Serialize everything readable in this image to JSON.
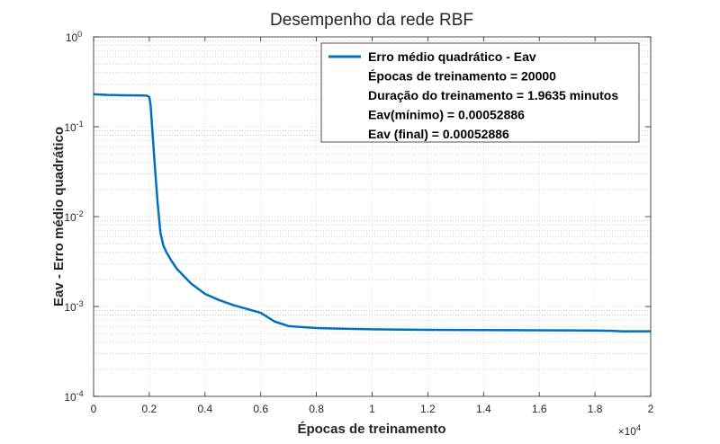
{
  "chart_data": {
    "type": "line",
    "title": "Desempenho da rede RBF",
    "xlabel": "Épocas de treinamento",
    "ylabel": "Eav - Erro médio quadrático",
    "x_tick_labels": [
      "0",
      "0.2",
      "0.4",
      "0.6",
      "0.8",
      "1",
      "1.2",
      "1.4",
      "1.6",
      "1.8",
      "2"
    ],
    "x_exponent_label": "×10",
    "x_exponent_power": "4",
    "xlim": [
      0,
      20000
    ],
    "y_scale": "log",
    "ylim": [
      0.0001,
      1
    ],
    "y_ticks": [
      {
        "base": "10",
        "power": "0",
        "value": 1
      },
      {
        "base": "10",
        "power": "-1",
        "value": 0.1
      },
      {
        "base": "10",
        "power": "-2",
        "value": 0.01
      },
      {
        "base": "10",
        "power": "-3",
        "value": 0.001
      },
      {
        "base": "10",
        "power": "-4",
        "value": 0.0001
      }
    ],
    "grid": true,
    "minor_grid": true,
    "legend_position": "top-right",
    "series": [
      {
        "name": "Erro médio quadrático - Eav",
        "color": "#0072BD",
        "x": [
          0,
          500,
          1000,
          1500,
          1900,
          2000,
          2050,
          2100,
          2200,
          2300,
          2400,
          2500,
          2600,
          2800,
          3000,
          3500,
          4000,
          4500,
          5000,
          5500,
          6000,
          6500,
          7000,
          8000,
          9000,
          10000,
          12000,
          14000,
          16000,
          18000,
          18600,
          19000,
          20000
        ],
        "y": [
          0.23,
          0.226,
          0.224,
          0.223,
          0.222,
          0.215,
          0.17,
          0.1,
          0.036,
          0.014,
          0.0066,
          0.0048,
          0.0041,
          0.0032,
          0.0026,
          0.0018,
          0.00138,
          0.00118,
          0.00104,
          0.00094,
          0.00085,
          0.00068,
          0.000605,
          0.000575,
          0.000565,
          0.000558,
          0.00055,
          0.000546,
          0.000543,
          0.00054,
          0.000535,
          0.00053,
          0.00052886
        ]
      }
    ],
    "legend_lines": [
      "Erro médio quadrático - Eav",
      "Épocas de treinamento = 20000",
      "Duração do treinamento = 1.9635 minutos",
      "Eav(mínimo) = 0.00052886",
      "Eav (final) = 0.00052886"
    ]
  }
}
